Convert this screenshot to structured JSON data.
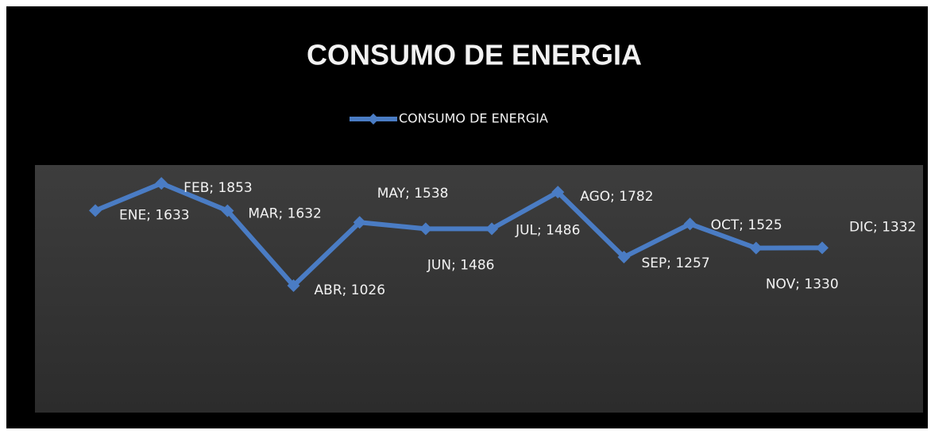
{
  "chart_data": {
    "type": "line",
    "title": "CONSUMO DE ENERGIA",
    "categories": [
      "ENE",
      "FEB",
      "MAR",
      "ABR",
      "MAY",
      "JUN",
      "JUL",
      "AGO",
      "SEP",
      "OCT",
      "NOV",
      "DIC"
    ],
    "series": [
      {
        "name": "CONSUMO DE ENERGIA",
        "color": "#4a7cc4",
        "values": [
          1633,
          1853,
          1632,
          1026,
          1538,
          1486,
          1486,
          1782,
          1257,
          1525,
          1330,
          1332
        ],
        "value_labels": [
          "ENE; 1633",
          "FEB; 1853",
          "MAR; 1632",
          "ABR; 1026",
          "MAY; 1538",
          "JUN; 1486",
          "JUL; 1486",
          "AGO; 1782",
          "SEP; 1257",
          "OCT; 1525",
          "NOV; 1330",
          "DIC; 1332"
        ]
      }
    ],
    "legend": "top"
  }
}
